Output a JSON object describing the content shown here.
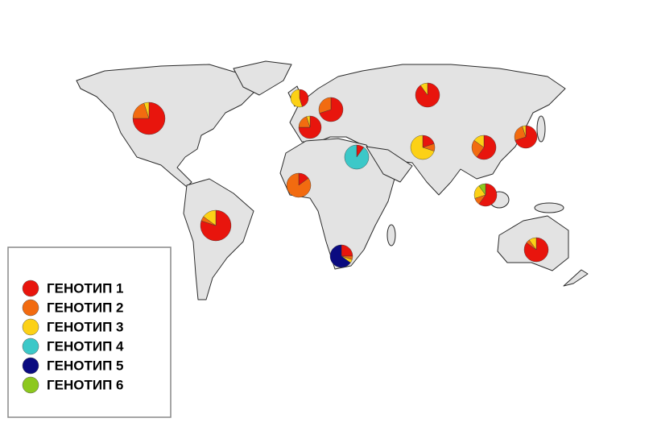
{
  "legend": {
    "items": [
      {
        "label": "ГЕНОТИП 1",
        "color": "#e8150d"
      },
      {
        "label": "ГЕНОТИП 2",
        "color": "#f26b10"
      },
      {
        "label": "ГЕНОТИП 3",
        "color": "#fcd116"
      },
      {
        "label": "ГЕНОТИП 4",
        "color": "#3cc8c8"
      },
      {
        "label": "ГЕНОТИП 5",
        "color": "#0a0a80"
      },
      {
        "label": "ГЕНОТИП 6",
        "color": "#8cc81e"
      }
    ]
  },
  "pies": [
    {
      "values": [
        75,
        20,
        5,
        0,
        0,
        0
      ]
    },
    {
      "values": [
        80,
        5,
        15,
        0,
        0,
        0
      ]
    },
    {
      "values": [
        45,
        0,
        55,
        0,
        0,
        0
      ]
    },
    {
      "values": [
        70,
        30,
        0,
        0,
        0,
        0
      ]
    },
    {
      "values": [
        75,
        20,
        5,
        0,
        0,
        0
      ]
    },
    {
      "values": [
        90,
        0,
        10,
        0,
        0,
        0
      ]
    },
    {
      "values": [
        10,
        0,
        0,
        90,
        0,
        0
      ]
    },
    {
      "values": [
        15,
        85,
        0,
        0,
        0,
        0
      ]
    },
    {
      "values": [
        25,
        5,
        5,
        0,
        65,
        0
      ]
    },
    {
      "values": [
        20,
        10,
        70,
        0,
        0,
        0
      ]
    },
    {
      "values": [
        60,
        25,
        15,
        0,
        0,
        0
      ]
    },
    {
      "values": [
        70,
        25,
        5,
        0,
        0,
        0
      ]
    },
    {
      "values": [
        60,
        10,
        20,
        0,
        0,
        10
      ]
    },
    {
      "values": [
        85,
        5,
        10,
        0,
        0,
        0
      ]
    }
  ]
}
